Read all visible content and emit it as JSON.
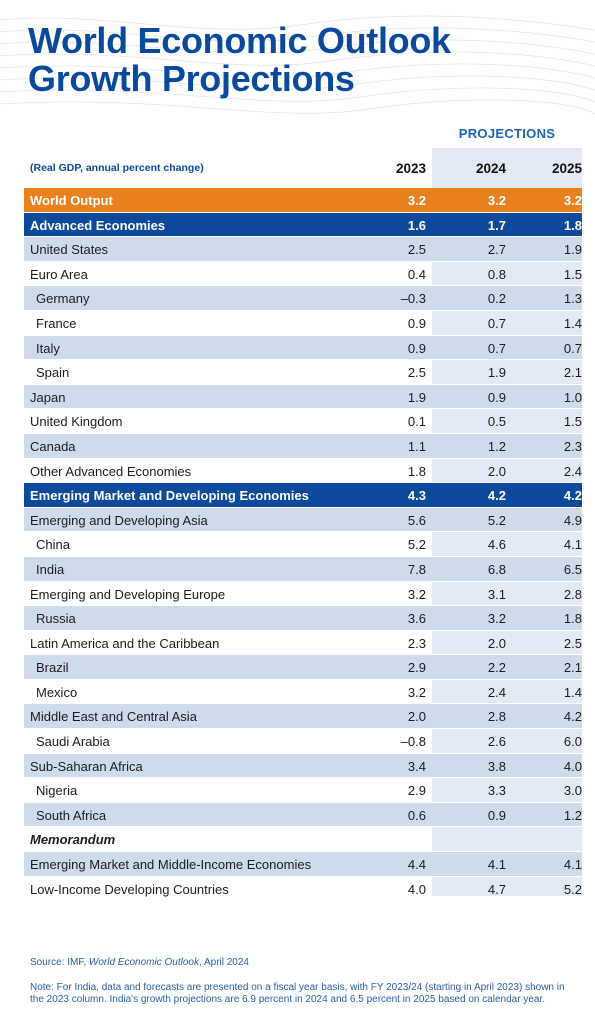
{
  "title_line1": "World Economic Outlook",
  "title_line2": "Growth Projections",
  "projections_label": "PROJECTIONS",
  "unit_label": "(Real GDP, annual percent change)",
  "columns": [
    "2023",
    "2024",
    "2025"
  ],
  "source_prefix": "Source: IMF, ",
  "source_title": "World Economic Outlook",
  "source_suffix": ", April 2024",
  "note": "Note: For India, data and forecasts are presented on a fiscal year basis, with FY 2023/24 (starting in April 2023) shown in the 2023 column. India's growth projections are 6.9 percent in 2024 and 6.5 percent in 2025 based on calendar year.",
  "colors": {
    "title": "#0a4a9c",
    "world_row": "#e8801e",
    "group_row": "#0d4a9b",
    "shaded_row": "#cfdaeb",
    "projection_band": "#e3eaf5"
  },
  "rows": [
    {
      "label": "World Output",
      "style": "world",
      "values": [
        "3.2",
        "3.2",
        "3.2"
      ]
    },
    {
      "label": "Advanced Economies",
      "style": "bold-blue",
      "values": [
        "1.6",
        "1.7",
        "1.8"
      ]
    },
    {
      "label": "United States",
      "style": "shade",
      "values": [
        "2.5",
        "2.7",
        "1.9"
      ]
    },
    {
      "label": "Euro Area",
      "style": "plain",
      "values": [
        "0.4",
        "0.8",
        "1.5"
      ]
    },
    {
      "label": "Germany",
      "style": "shade",
      "indent": true,
      "values": [
        "–0.3",
        "0.2",
        "1.3"
      ]
    },
    {
      "label": "France",
      "style": "plain",
      "indent": true,
      "values": [
        "0.9",
        "0.7",
        "1.4"
      ]
    },
    {
      "label": "Italy",
      "style": "shade",
      "indent": true,
      "values": [
        "0.9",
        "0.7",
        "0.7"
      ]
    },
    {
      "label": "Spain",
      "style": "plain",
      "indent": true,
      "values": [
        "2.5",
        "1.9",
        "2.1"
      ]
    },
    {
      "label": "Japan",
      "style": "shade",
      "values": [
        "1.9",
        "0.9",
        "1.0"
      ]
    },
    {
      "label": "United Kingdom",
      "style": "plain",
      "values": [
        "0.1",
        "0.5",
        "1.5"
      ]
    },
    {
      "label": "Canada",
      "style": "shade",
      "values": [
        "1.1",
        "1.2",
        "2.3"
      ]
    },
    {
      "label": "Other Advanced Economies",
      "style": "plain",
      "values": [
        "1.8",
        "2.0",
        "2.4"
      ]
    },
    {
      "label": "Emerging Market and Developing Economies",
      "style": "bold-blue",
      "values": [
        "4.3",
        "4.2",
        "4.2"
      ]
    },
    {
      "label": "Emerging and Developing Asia",
      "style": "shade",
      "values": [
        "5.6",
        "5.2",
        "4.9"
      ]
    },
    {
      "label": "China",
      "style": "plain",
      "indent": true,
      "values": [
        "5.2",
        "4.6",
        "4.1"
      ]
    },
    {
      "label": "India",
      "style": "shade",
      "indent": true,
      "values": [
        "7.8",
        "6.8",
        "6.5"
      ]
    },
    {
      "label": "Emerging and Developing Europe",
      "style": "plain",
      "values": [
        "3.2",
        "3.1",
        "2.8"
      ]
    },
    {
      "label": "Russia",
      "style": "shade",
      "indent": true,
      "values": [
        "3.6",
        "3.2",
        "1.8"
      ]
    },
    {
      "label": "Latin America and the Caribbean",
      "style": "plain",
      "values": [
        "2.3",
        "2.0",
        "2.5"
      ]
    },
    {
      "label": "Brazil",
      "style": "shade",
      "indent": true,
      "values": [
        "2.9",
        "2.2",
        "2.1"
      ]
    },
    {
      "label": "Mexico",
      "style": "plain",
      "indent": true,
      "values": [
        "3.2",
        "2.4",
        "1.4"
      ]
    },
    {
      "label": "Middle East and Central Asia",
      "style": "shade",
      "values": [
        "2.0",
        "2.8",
        "4.2"
      ]
    },
    {
      "label": "Saudi Arabia",
      "style": "plain",
      "indent": true,
      "values": [
        "–0.8",
        "2.6",
        "6.0"
      ]
    },
    {
      "label": "Sub-Saharan Africa",
      "style": "shade",
      "values": [
        "3.4",
        "3.8",
        "4.0"
      ]
    },
    {
      "label": "Nigeria",
      "style": "plain",
      "indent": true,
      "values": [
        "2.9",
        "3.3",
        "3.0"
      ]
    },
    {
      "label": "South Africa",
      "style": "shade",
      "indent": true,
      "values": [
        "0.6",
        "0.9",
        "1.2"
      ]
    },
    {
      "label": "Memorandum",
      "style": "memo",
      "values": [
        "",
        "",
        ""
      ]
    },
    {
      "label": "Emerging Market and Middle-Income Economies",
      "style": "shade",
      "values": [
        "4.4",
        "4.1",
        "4.1"
      ]
    },
    {
      "label": "Low-Income Developing Countries",
      "style": "plain",
      "values": [
        "4.0",
        "4.7",
        "5.2"
      ]
    }
  ],
  "chart_data": {
    "type": "table",
    "title": "World Economic Outlook Growth Projections",
    "subtitle": "(Real GDP, annual percent change)",
    "columns": [
      "2023",
      "2024",
      "2025"
    ],
    "rows": [
      {
        "name": "World Output",
        "values": [
          3.2,
          3.2,
          3.2
        ]
      },
      {
        "name": "Advanced Economies",
        "values": [
          1.6,
          1.7,
          1.8
        ]
      },
      {
        "name": "United States",
        "values": [
          2.5,
          2.7,
          1.9
        ]
      },
      {
        "name": "Euro Area",
        "values": [
          0.4,
          0.8,
          1.5
        ]
      },
      {
        "name": "Germany",
        "values": [
          -0.3,
          0.2,
          1.3
        ]
      },
      {
        "name": "France",
        "values": [
          0.9,
          0.7,
          1.4
        ]
      },
      {
        "name": "Italy",
        "values": [
          0.9,
          0.7,
          0.7
        ]
      },
      {
        "name": "Spain",
        "values": [
          2.5,
          1.9,
          2.1
        ]
      },
      {
        "name": "Japan",
        "values": [
          1.9,
          0.9,
          1.0
        ]
      },
      {
        "name": "United Kingdom",
        "values": [
          0.1,
          0.5,
          1.5
        ]
      },
      {
        "name": "Canada",
        "values": [
          1.1,
          1.2,
          2.3
        ]
      },
      {
        "name": "Other Advanced Economies",
        "values": [
          1.8,
          2.0,
          2.4
        ]
      },
      {
        "name": "Emerging Market and Developing Economies",
        "values": [
          4.3,
          4.2,
          4.2
        ]
      },
      {
        "name": "Emerging and Developing Asia",
        "values": [
          5.6,
          5.2,
          4.9
        ]
      },
      {
        "name": "China",
        "values": [
          5.2,
          4.6,
          4.1
        ]
      },
      {
        "name": "India",
        "values": [
          7.8,
          6.8,
          6.5
        ]
      },
      {
        "name": "Emerging and Developing Europe",
        "values": [
          3.2,
          3.1,
          2.8
        ]
      },
      {
        "name": "Russia",
        "values": [
          3.6,
          3.2,
          1.8
        ]
      },
      {
        "name": "Latin America and the Caribbean",
        "values": [
          2.3,
          2.0,
          2.5
        ]
      },
      {
        "name": "Brazil",
        "values": [
          2.9,
          2.2,
          2.1
        ]
      },
      {
        "name": "Mexico",
        "values": [
          3.2,
          2.4,
          1.4
        ]
      },
      {
        "name": "Middle East and Central Asia",
        "values": [
          2.0,
          2.8,
          4.2
        ]
      },
      {
        "name": "Saudi Arabia",
        "values": [
          -0.8,
          2.6,
          6.0
        ]
      },
      {
        "name": "Sub-Saharan Africa",
        "values": [
          3.4,
          3.8,
          4.0
        ]
      },
      {
        "name": "Nigeria",
        "values": [
          2.9,
          3.3,
          3.0
        ]
      },
      {
        "name": "South Africa",
        "values": [
          0.6,
          0.9,
          1.2
        ]
      },
      {
        "name": "Emerging Market and Middle-Income Economies",
        "values": [
          4.4,
          4.1,
          4.1
        ]
      },
      {
        "name": "Low-Income Developing Countries",
        "values": [
          4.0,
          4.7,
          5.2
        ]
      }
    ]
  }
}
